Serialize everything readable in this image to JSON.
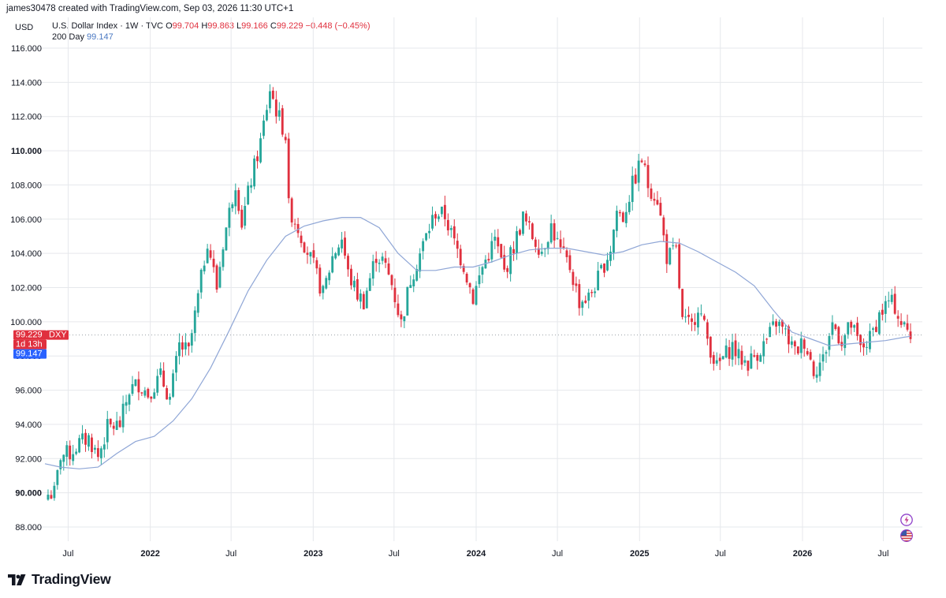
{
  "header": {
    "created_by": "james30478 created with TradingView.com, Sep 03, 2026 11:30 UTC+1",
    "currency": "USD",
    "symbol_desc": "U.S. Dollar Index · 1W · TVC",
    "o_label": "O",
    "o_value": "99.704",
    "h_label": "H",
    "h_value": "99.863",
    "l_label": "L",
    "l_value": "99.166",
    "c_label": "C",
    "c_value": "99.229",
    "change": "−0.448 (−0.45%)",
    "ma_label": "200 Day",
    "ma_value": "99.147"
  },
  "badges": {
    "price": "99.229",
    "ticker": "DXY",
    "countdown": "1d 13h",
    "ma": "99.147"
  },
  "brand": {
    "name": "TradingView"
  },
  "icons": [
    "lightning-icon",
    "us-flag-icon"
  ],
  "colors": {
    "up": "#26a69a",
    "down": "#e0303e",
    "ma": "#8fa6d6",
    "ma_badge": "#2962ff",
    "grid": "#e6e8ec"
  },
  "chart_data": {
    "type": "candlestick",
    "title": "U.S. Dollar Index · 1W · TVC",
    "currency": "USD",
    "xlabel": "",
    "ylabel": "",
    "ylim": [
      88,
      116
    ],
    "y_ticks": [
      "88.000",
      "90.000",
      "92.000",
      "94.000",
      "96.000",
      "98.000",
      "100.000",
      "102.000",
      "104.000",
      "106.000",
      "108.000",
      "110.000",
      "112.000",
      "114.000",
      "116.000"
    ],
    "y_ticks_bold": [
      "90.000",
      "110.000"
    ],
    "x_range": [
      "2021-05-10",
      "2026-08-31"
    ],
    "x_ticks": [
      {
        "label": "Jul",
        "date": "2021-07-01",
        "bold": false
      },
      {
        "label": "2022",
        "date": "2022-01-01",
        "bold": true
      },
      {
        "label": "Jul",
        "date": "2022-07-01",
        "bold": false
      },
      {
        "label": "2023",
        "date": "2023-01-01",
        "bold": true
      },
      {
        "label": "Jul",
        "date": "2023-07-01",
        "bold": false
      },
      {
        "label": "2024",
        "date": "2024-01-01",
        "bold": true
      },
      {
        "label": "Jul",
        "date": "2024-07-01",
        "bold": false
      },
      {
        "label": "2025",
        "date": "2025-01-01",
        "bold": true
      },
      {
        "label": "Jul",
        "date": "2025-07-01",
        "bold": false
      },
      {
        "label": "2026",
        "date": "2026-01-01",
        "bold": true
      },
      {
        "label": "Jul",
        "date": "2026-07-01",
        "bold": false
      }
    ],
    "last_close": 99.229,
    "ma_last": 99.147,
    "price_path": [
      [
        "2021-05-17",
        89.9
      ],
      [
        "2021-06-01",
        90.0
      ],
      [
        "2021-06-14",
        92.2
      ],
      [
        "2021-07-05",
        92.3
      ],
      [
        "2021-07-26",
        92.9
      ],
      [
        "2021-08-16",
        93.2
      ],
      [
        "2021-09-06",
        92.1
      ],
      [
        "2021-09-27",
        93.8
      ],
      [
        "2021-10-25",
        94.0
      ],
      [
        "2021-11-15",
        96.0
      ],
      [
        "2021-12-06",
        96.4
      ],
      [
        "2021-12-27",
        95.8
      ],
      [
        "2022-01-24",
        96.8
      ],
      [
        "2022-02-14",
        95.5
      ],
      [
        "2022-03-07",
        98.6
      ],
      [
        "2022-03-28",
        98.2
      ],
      [
        "2022-04-25",
        102.5
      ],
      [
        "2022-05-09",
        104.8
      ],
      [
        "2022-05-30",
        102.0
      ],
      [
        "2022-06-13",
        104.6
      ],
      [
        "2022-07-11",
        108.2
      ],
      [
        "2022-07-25",
        105.8
      ],
      [
        "2022-08-15",
        108.3
      ],
      [
        "2022-09-05",
        110.5
      ],
      [
        "2022-09-26",
        113.6
      ],
      [
        "2022-10-10",
        112.4
      ],
      [
        "2022-10-31",
        110.9
      ],
      [
        "2022-11-07",
        106.7
      ],
      [
        "2022-11-28",
        105.5
      ],
      [
        "2022-12-12",
        104.6
      ],
      [
        "2023-01-02",
        103.2
      ],
      [
        "2023-01-23",
        101.6
      ],
      [
        "2023-02-13",
        103.8
      ],
      [
        "2023-03-06",
        104.9
      ],
      [
        "2023-03-20",
        102.8
      ],
      [
        "2023-04-10",
        101.6
      ],
      [
        "2023-04-24",
        101.2
      ],
      [
        "2023-05-22",
        103.9
      ],
      [
        "2023-06-05",
        103.6
      ],
      [
        "2023-06-26",
        102.2
      ],
      [
        "2023-07-17",
        99.9
      ],
      [
        "2023-08-07",
        102.5
      ],
      [
        "2023-08-28",
        104.0
      ],
      [
        "2023-09-18",
        105.5
      ],
      [
        "2023-10-02",
        106.4
      ],
      [
        "2023-10-23",
        106.2
      ],
      [
        "2023-11-13",
        104.6
      ],
      [
        "2023-12-04",
        103.3
      ],
      [
        "2023-12-25",
        101.4
      ],
      [
        "2024-01-15",
        103.2
      ],
      [
        "2024-02-12",
        104.8
      ],
      [
        "2024-03-04",
        102.9
      ],
      [
        "2024-03-25",
        104.4
      ],
      [
        "2024-04-15",
        106.1
      ],
      [
        "2024-05-06",
        105.0
      ],
      [
        "2024-05-27",
        104.2
      ],
      [
        "2024-06-17",
        105.6
      ],
      [
        "2024-07-08",
        104.1
      ],
      [
        "2024-07-29",
        103.2
      ],
      [
        "2024-08-19",
        101.2
      ],
      [
        "2024-09-09",
        101.4
      ],
      [
        "2024-09-30",
        102.5
      ],
      [
        "2024-10-28",
        104.3
      ],
      [
        "2024-11-11",
        106.5
      ],
      [
        "2024-11-25",
        106.1
      ],
      [
        "2024-12-16",
        108.0
      ],
      [
        "2025-01-06",
        109.5
      ],
      [
        "2025-01-20",
        108.0
      ],
      [
        "2025-02-10",
        107.2
      ],
      [
        "2025-03-03",
        103.8
      ],
      [
        "2025-03-24",
        104.1
      ],
      [
        "2025-04-07",
        100.0
      ],
      [
        "2025-04-28",
        99.7
      ],
      [
        "2025-05-12",
        101.0
      ],
      [
        "2025-06-02",
        99.0
      ],
      [
        "2025-06-23",
        97.3
      ],
      [
        "2025-07-07",
        97.9
      ],
      [
        "2025-07-28",
        98.6
      ],
      [
        "2025-08-11",
        97.9
      ],
      [
        "2025-09-01",
        97.6
      ],
      [
        "2025-09-22",
        98.2
      ],
      [
        "2025-10-13",
        98.9
      ],
      [
        "2025-11-03",
        100.0
      ],
      [
        "2025-11-24",
        99.3
      ],
      [
        "2025-12-15",
        98.2
      ],
      [
        "2026-01-05",
        98.9
      ],
      [
        "2026-01-26",
        97.2
      ],
      [
        "2026-02-16",
        97.8
      ],
      [
        "2026-03-09",
        99.9
      ],
      [
        "2026-03-30",
        98.9
      ],
      [
        "2026-04-20",
        99.8
      ],
      [
        "2026-05-11",
        98.4
      ],
      [
        "2026-06-01",
        99.0
      ],
      [
        "2026-06-22",
        100.4
      ],
      [
        "2026-07-13",
        101.2
      ],
      [
        "2026-07-27",
        100.9
      ],
      [
        "2026-08-10",
        99.9
      ],
      [
        "2026-08-31",
        99.23
      ]
    ],
    "ma_path": [
      [
        "2021-05-10",
        91.7
      ],
      [
        "2021-06-14",
        91.5
      ],
      [
        "2021-07-26",
        91.4
      ],
      [
        "2021-09-06",
        91.5
      ],
      [
        "2021-10-18",
        92.3
      ],
      [
        "2021-11-29",
        93.0
      ],
      [
        "2022-01-10",
        93.3
      ],
      [
        "2022-02-21",
        94.2
      ],
      [
        "2022-04-04",
        95.5
      ],
      [
        "2022-05-16",
        97.3
      ],
      [
        "2022-06-27",
        99.5
      ],
      [
        "2022-08-08",
        101.8
      ],
      [
        "2022-09-19",
        103.6
      ],
      [
        "2022-10-31",
        105.0
      ],
      [
        "2022-12-12",
        105.6
      ],
      [
        "2023-01-23",
        105.9
      ],
      [
        "2023-03-06",
        106.1
      ],
      [
        "2023-04-17",
        106.1
      ],
      [
        "2023-05-29",
        105.5
      ],
      [
        "2023-07-10",
        104.0
      ],
      [
        "2023-08-21",
        103.0
      ],
      [
        "2023-10-02",
        103.0
      ],
      [
        "2023-11-13",
        103.2
      ],
      [
        "2023-12-25",
        103.2
      ],
      [
        "2024-02-05",
        103.5
      ],
      [
        "2024-03-18",
        103.9
      ],
      [
        "2024-04-29",
        104.2
      ],
      [
        "2024-06-10",
        104.3
      ],
      [
        "2024-07-22",
        104.3
      ],
      [
        "2024-09-02",
        104.1
      ],
      [
        "2024-10-14",
        103.9
      ],
      [
        "2024-11-25",
        104.1
      ],
      [
        "2025-01-06",
        104.5
      ],
      [
        "2025-02-17",
        104.7
      ],
      [
        "2025-03-31",
        104.6
      ],
      [
        "2025-05-12",
        104.1
      ],
      [
        "2025-06-23",
        103.5
      ],
      [
        "2025-08-04",
        102.9
      ],
      [
        "2025-09-15",
        102.1
      ],
      [
        "2025-10-27",
        100.7
      ],
      [
        "2025-12-08",
        99.4
      ],
      [
        "2026-01-19",
        99.0
      ],
      [
        "2026-03-02",
        98.6
      ],
      [
        "2026-04-13",
        98.7
      ],
      [
        "2026-05-25",
        98.8
      ],
      [
        "2026-07-06",
        98.9
      ],
      [
        "2026-08-17",
        99.1
      ],
      [
        "2026-08-31",
        99.15
      ]
    ]
  }
}
